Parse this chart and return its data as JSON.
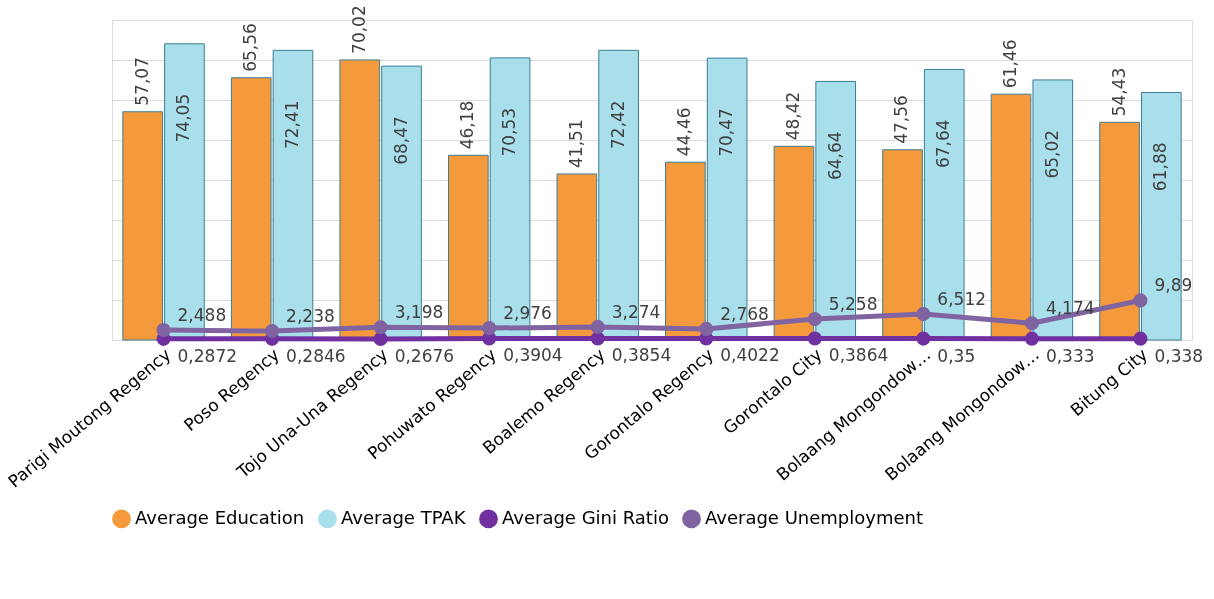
{
  "chart_data": {
    "type": "bar",
    "categories": [
      "Parigi Moutong Regency",
      "Poso Regency",
      "Tojo Una-Una Regency",
      "Pohuwato Regency",
      "Boalemo Regency",
      "Gorontalo Regency",
      "Gorontalo City",
      "Bolaang Mongondow…",
      "Bolaang Mongondow…",
      "Bitung City"
    ],
    "series": [
      {
        "name": "Average Education",
        "color": "#f59a3c",
        "values": [
          57.07,
          65.56,
          70.02,
          46.18,
          41.51,
          44.46,
          48.42,
          47.56,
          61.46,
          54.43
        ],
        "value_labels": [
          "57,07",
          "65,56",
          "70,02",
          "46,18",
          "41,51",
          "44,46",
          "48,42",
          "47,56",
          "61,46",
          "54,43"
        ]
      },
      {
        "name": "Average TPAK",
        "color": "#a8dfea",
        "values": [
          74.05,
          72.41,
          68.47,
          70.53,
          72.42,
          70.47,
          64.64,
          67.64,
          65.02,
          61.88
        ],
        "value_labels": [
          "74,05",
          "72,41",
          "68,47",
          "70,53",
          "72,42",
          "70,47",
          "64,64",
          "67,64",
          "65,02",
          "61,88"
        ]
      },
      {
        "type": "line",
        "name": "Average Gini Ratio",
        "color": "#7030a0",
        "values": [
          0.2872,
          0.2846,
          0.2676,
          0.3904,
          0.3854,
          0.4022,
          0.3864,
          0.35,
          0.333,
          0.338
        ],
        "value_labels": [
          "0,2872",
          "0,2846",
          "0,2676",
          "0,3904",
          "0,3854",
          "0,4022",
          "0,3864",
          "0,35",
          "0,333",
          "0,338"
        ]
      },
      {
        "type": "line",
        "name": "Average Unemployment",
        "color": "#8064a2",
        "values": [
          2.488,
          2.238,
          3.198,
          2.976,
          3.274,
          2.768,
          5.258,
          6.512,
          4.174,
          9.89
        ],
        "value_labels": [
          "2,488",
          "2,238",
          "3,198",
          "2,976",
          "3,274",
          "2,768",
          "5,258",
          "6,512",
          "4,174",
          "9,89"
        ]
      }
    ],
    "ylim": [
      0,
      80
    ],
    "yticks": [
      {
        "value": 0,
        "label": null
      },
      {
        "value": 10,
        "label": null
      },
      {
        "value": 20,
        "label": null
      },
      {
        "value": 30,
        "label": null
      },
      {
        "value": 40,
        "label": null
      },
      {
        "value": 50,
        "label": null
      },
      {
        "value": 60,
        "label": null
      },
      {
        "value": 70,
        "label": null
      },
      {
        "value": 80,
        "label": null
      }
    ],
    "tick_labels": "x",
    "grid": "y",
    "legend": "bottom",
    "marker": "circle"
  }
}
